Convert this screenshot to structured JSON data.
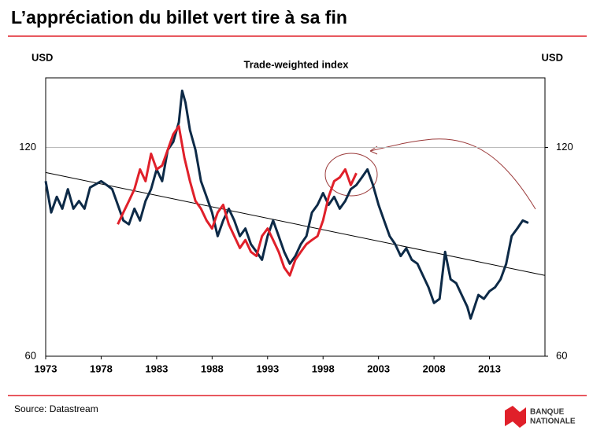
{
  "chart_data": {
    "type": "line",
    "title": "L’appréciation du billet vert tire à sa fin",
    "subtitle": "Trade-weighted index",
    "ylabel": "USD",
    "y2label": "USD",
    "source": "Source: Datastream",
    "logo": [
      "BANQUE",
      "NATIONALE"
    ],
    "xlim": [
      1973,
      2018
    ],
    "xticks": [
      1973,
      1978,
      1983,
      1988,
      1993,
      1998,
      2003,
      2008,
      2013
    ],
    "ylim": [
      60,
      140
    ],
    "yticks": [
      60,
      120
    ],
    "y2lim": [
      60,
      140
    ],
    "y2ticks": [
      60,
      120
    ],
    "grid": true,
    "series": [
      {
        "color": "#0d2a47",
        "x": [
          1973,
          1973.5,
          1974,
          1974.5,
          1975,
          1975.5,
          1976,
          1976.5,
          1977,
          1978,
          1978.5,
          1979,
          1979.5,
          1980,
          1980.5,
          1981,
          1981.5,
          1982,
          1982.5,
          1983,
          1983.5,
          1984,
          1984.5,
          1985,
          1985.3,
          1985.6,
          1986,
          1986.5,
          1987,
          1987.5,
          1988,
          1988.5,
          1989,
          1989.5,
          1990,
          1990.5,
          1991,
          1991.5,
          1992,
          1992.5,
          1993,
          1993.5,
          1994,
          1994.5,
          1995,
          1995.5,
          1996,
          1996.5,
          1997,
          1997.5,
          1998,
          1998.5,
          1999,
          1999.5,
          2000,
          2000.5,
          2001,
          2001.5,
          2002,
          2002.5,
          2003,
          2003.5,
          2004,
          2004.5,
          2005,
          2005.5,
          2006,
          2006.5,
          2007,
          2007.5,
          2008,
          2008.5,
          2009,
          2009.5,
          2010,
          2010.5,
          2011,
          2011.3,
          2012,
          2012.5,
          2013,
          2013.5,
          2014,
          2014.5,
          2015,
          2015.5,
          2016,
          2016.5
        ],
        "values": [
          110.3,
          101.3,
          105.8,
          102.4,
          108,
          102.4,
          104.6,
          102.4,
          108.5,
          110.3,
          109.2,
          108,
          103.5,
          99,
          97.9,
          102.4,
          99,
          104.6,
          108,
          113.7,
          110.3,
          119.3,
          121.6,
          127.2,
          136.3,
          132.9,
          125,
          119.3,
          110.3,
          105.8,
          101.3,
          94.5,
          99,
          102.4,
          99,
          94.5,
          96.7,
          92.2,
          90,
          87.7,
          94.5,
          99,
          94.5,
          90,
          86.6,
          88.8,
          92.2,
          94.5,
          101.3,
          103.5,
          106.9,
          103.5,
          105.8,
          102.4,
          104.6,
          108,
          109.2,
          111.4,
          113.7,
          109.2,
          103.5,
          99,
          94.5,
          92.2,
          88.8,
          91,
          87.7,
          86.6,
          83.2,
          79.8,
          75.3,
          76.5,
          90,
          82.1,
          81,
          77.6,
          74.2,
          70.8,
          77.6,
          76.5,
          78.7,
          79.8,
          82.1,
          86.5,
          94.5,
          96.7,
          99,
          98.3
        ]
      },
      {
        "color": "#e0202a",
        "x": [
          1979.5,
          1980,
          1980.5,
          1981,
          1981.5,
          1982,
          1982.5,
          1983,
          1983.5,
          1984,
          1984.5,
          1985,
          1985.5,
          1986,
          1986.5,
          1987,
          1987.5,
          1988,
          1988.5,
          1989,
          1989.5,
          1990,
          1990.5,
          1991,
          1991.5,
          1992,
          1992.5,
          1993,
          1993.5,
          1994,
          1994.5,
          1995,
          1995.5,
          1996,
          1996.5,
          1997,
          1997.5,
          1998,
          1998.5,
          1999,
          1999.5,
          2000,
          2000.5,
          2001
        ],
        "values": [
          97.9,
          101.3,
          104.6,
          108,
          113.7,
          110.3,
          118.2,
          113.7,
          114.8,
          119.3,
          123.8,
          126.1,
          117.1,
          110.3,
          104.6,
          102.4,
          99,
          96.7,
          101.3,
          103.5,
          97.9,
          94.5,
          91.1,
          93.4,
          90,
          88.8,
          94.5,
          96.7,
          93.4,
          90,
          85.5,
          83.2,
          87.7,
          90,
          92.2,
          93.4,
          94.5,
          99,
          105.8,
          110.3,
          111.4,
          113.7,
          109.2,
          112.6
        ]
      }
    ],
    "trend_line": {
      "color": "#000000",
      "x": [
        1973,
        2018
      ],
      "values": [
        112.8,
        83.2
      ]
    }
  }
}
